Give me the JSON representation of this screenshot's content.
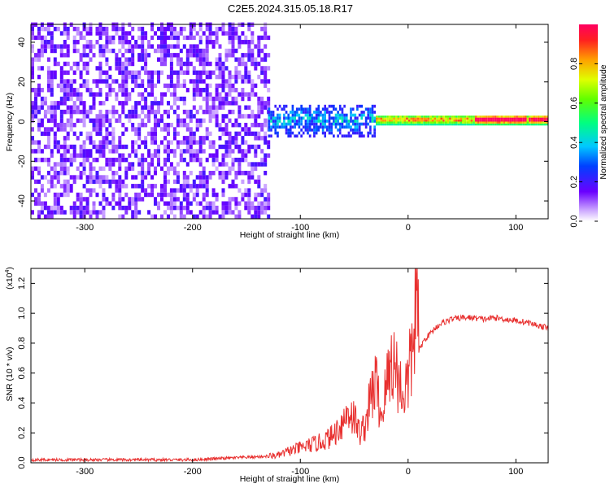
{
  "title": "C2E5.2024.315.05.18.R17",
  "chart_data": [
    {
      "type": "heatmap",
      "title": "",
      "xlabel": "Height of straight line (km)",
      "ylabel": "Frequency (Hz)",
      "xlim": [
        -350,
        130
      ],
      "ylim": [
        -49,
        49
      ],
      "xticks": [
        -300,
        -200,
        -100,
        0,
        100
      ],
      "yticks": [
        -40,
        -20,
        0,
        20,
        40
      ],
      "colorbar": {
        "label": "Normalized spectral amplitude",
        "range": [
          0,
          1
        ],
        "ticks": [
          "0.0",
          "0.2",
          "0.4",
          "0.6",
          "0.8"
        ],
        "tick_values": [
          0,
          0.2,
          0.4,
          0.6,
          0.8
        ]
      },
      "regions": [
        {
          "x_range": [
            -350,
            -130
          ],
          "f_range": [
            -49,
            49
          ],
          "amplitude": [
            0.05,
            0.2
          ]
        },
        {
          "x_range": [
            -130,
            -30
          ],
          "f_range": [
            -8,
            8
          ],
          "amplitude": [
            0.2,
            0.5
          ]
        },
        {
          "x_range": [
            -30,
            130
          ],
          "f_range": [
            -2,
            3
          ],
          "amplitude": [
            0.4,
            1.0
          ]
        }
      ]
    },
    {
      "type": "line",
      "title": "",
      "xlabel": "Height of straight line (km)",
      "ylabel": "SNR (10 * v/v)",
      "y_multiplier": "(x10",
      "y_multiplier_exp": "4",
      "y_multiplier_close": ")",
      "xlim": [
        -350,
        130
      ],
      "ylim": [
        0,
        1.3
      ],
      "xticks": [
        -300,
        -200,
        -100,
        0,
        100
      ],
      "yticks": [
        "0.0",
        "0.2",
        "0.4",
        "0.6",
        "0.8",
        "1.0",
        "1.2"
      ],
      "ytick_values": [
        0,
        0.2,
        0.4,
        0.6,
        0.8,
        1.0,
        1.2
      ],
      "color": "#e8302f",
      "series": [
        {
          "x": [
            -350,
            -300,
            -250,
            -200,
            -170,
            -140,
            -120,
            -110,
            -100,
            -90,
            -80,
            -70,
            -60,
            -55,
            -50,
            -45,
            -40,
            -35,
            -30,
            -25,
            -20,
            -15,
            -10,
            -5,
            0,
            5,
            8,
            10,
            15,
            20,
            25,
            30,
            40,
            50,
            60,
            70,
            80,
            90,
            100,
            110,
            120,
            130
          ],
          "y": [
            0.02,
            0.02,
            0.02,
            0.02,
            0.03,
            0.04,
            0.05,
            0.08,
            0.1,
            0.12,
            0.14,
            0.18,
            0.28,
            0.35,
            0.3,
            0.2,
            0.25,
            0.42,
            0.55,
            0.3,
            0.52,
            0.7,
            0.6,
            0.45,
            0.55,
            0.8,
            1.25,
            0.75,
            0.82,
            0.86,
            0.9,
            0.93,
            0.96,
            0.97,
            0.97,
            0.96,
            0.97,
            0.96,
            0.95,
            0.94,
            0.92,
            0.9
          ]
        }
      ]
    }
  ]
}
